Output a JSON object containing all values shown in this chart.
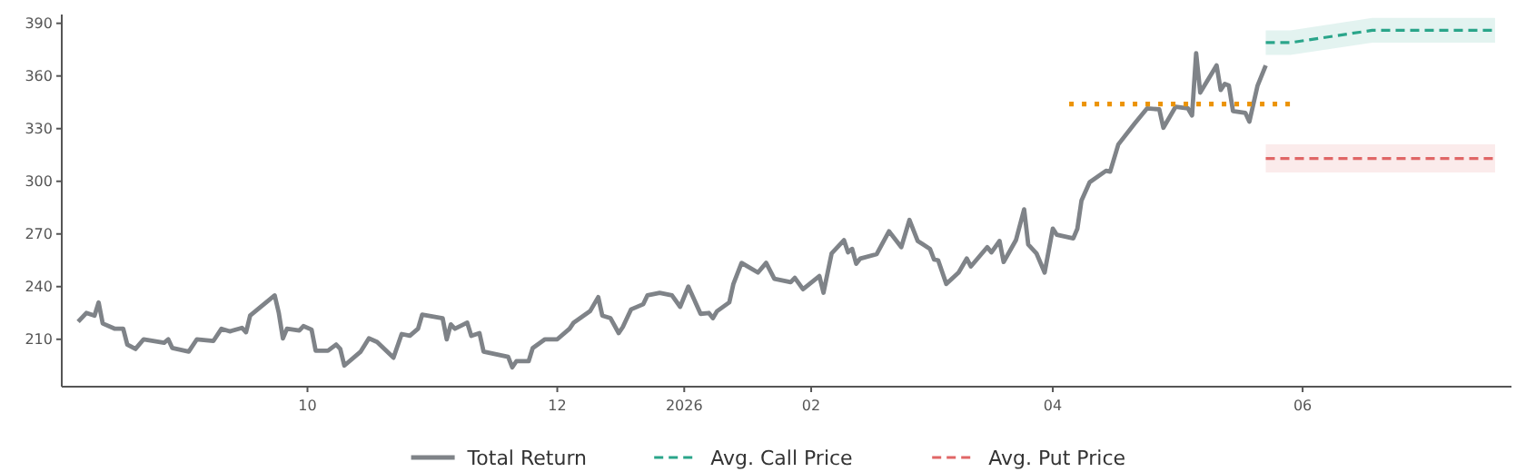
{
  "chart_data": {
    "type": "line",
    "xlim": [
      "2025-08-02",
      "2026-07-22"
    ],
    "ylim": [
      183,
      395
    ],
    "yticks": [
      210,
      240,
      270,
      300,
      330,
      360,
      390
    ],
    "xticks": [
      {
        "value": "2025-10-01",
        "label": "10"
      },
      {
        "value": "2025-12-01",
        "label": "12"
      },
      {
        "value": "2026-01-01",
        "label": "2026"
      },
      {
        "value": "2026-02-01",
        "label": "02"
      },
      {
        "value": "2026-04-01",
        "label": "04"
      },
      {
        "value": "2026-06-01",
        "label": "06"
      }
    ],
    "legend": "bottom",
    "grid": false,
    "series": [
      {
        "name": "Total Return",
        "color": "#7f8388",
        "line_style": "solid",
        "x": [
          "2025-08-06",
          "2025-08-08",
          "2025-08-10",
          "2025-08-11",
          "2025-08-12",
          "2025-08-15",
          "2025-08-17",
          "2025-08-18",
          "2025-08-20",
          "2025-08-22",
          "2025-08-27",
          "2025-08-28",
          "2025-08-29",
          "2025-09-02",
          "2025-09-04",
          "2025-09-08",
          "2025-09-10",
          "2025-09-12",
          "2025-09-15",
          "2025-09-16",
          "2025-09-17",
          "2025-09-23",
          "2025-09-24",
          "2025-09-25",
          "2025-09-26",
          "2025-09-29",
          "2025-09-30",
          "2025-10-02",
          "2025-10-03",
          "2025-10-06",
          "2025-10-08",
          "2025-10-09",
          "2025-10-10",
          "2025-10-14",
          "2025-10-16",
          "2025-10-18",
          "2025-10-22",
          "2025-10-24",
          "2025-10-26",
          "2025-10-28",
          "2025-10-29",
          "2025-11-03",
          "2025-11-04",
          "2025-11-05",
          "2025-11-06",
          "2025-11-09",
          "2025-11-10",
          "2025-11-12",
          "2025-11-13",
          "2025-11-19",
          "2025-11-20",
          "2025-11-21",
          "2025-11-24",
          "2025-11-25",
          "2025-11-28",
          "2025-12-01",
          "2025-12-04",
          "2025-12-05",
          "2025-12-09",
          "2025-12-11",
          "2025-12-12",
          "2025-12-14",
          "2025-12-16",
          "2025-12-17",
          "2025-12-19",
          "2025-12-22",
          "2025-12-23",
          "2025-12-26",
          "2025-12-29",
          "2025-12-31",
          "2026-01-02",
          "2026-01-05",
          "2026-01-07",
          "2026-01-08",
          "2026-01-09",
          "2026-01-12",
          "2026-01-13",
          "2026-01-15",
          "2026-01-19",
          "2026-01-21",
          "2026-01-23",
          "2026-01-27",
          "2026-01-28",
          "2026-01-30",
          "2026-02-03",
          "2026-02-04",
          "2026-02-06",
          "2026-02-09",
          "2026-02-10",
          "2026-02-11",
          "2026-02-12",
          "2026-02-13",
          "2026-02-17",
          "2026-02-20",
          "2026-02-23",
          "2026-02-25",
          "2026-02-27",
          "2026-03-02",
          "2026-03-03",
          "2026-03-04",
          "2026-03-06",
          "2026-03-09",
          "2026-03-11",
          "2026-03-12",
          "2026-03-16",
          "2026-03-17",
          "2026-03-19",
          "2026-03-20",
          "2026-03-23",
          "2026-03-25",
          "2026-03-26",
          "2026-03-28",
          "2026-03-30",
          "2026-04-01",
          "2026-04-02",
          "2026-04-06",
          "2026-04-07",
          "2026-04-08",
          "2026-04-10",
          "2026-04-14",
          "2026-04-15",
          "2026-04-17",
          "2026-04-21",
          "2026-04-24",
          "2026-04-27",
          "2026-04-28",
          "2026-05-01",
          "2026-05-04",
          "2026-05-05",
          "2026-05-06",
          "2026-05-07",
          "2026-05-11",
          "2026-05-12",
          "2026-05-13",
          "2026-05-14",
          "2026-05-15",
          "2026-05-18",
          "2026-05-19",
          "2026-05-21",
          "2026-05-23"
        ],
        "values": [
          220,
          225,
          223.5,
          231,
          219,
          216,
          216,
          207,
          204.5,
          210,
          208,
          210,
          205,
          203,
          210,
          209,
          216,
          214.5,
          216.5,
          214,
          223.5,
          235,
          225,
          210.5,
          216,
          215,
          217.5,
          215.5,
          203.5,
          203.5,
          207,
          204.5,
          195,
          203,
          210.5,
          208.5,
          199.5,
          213,
          212,
          216,
          224,
          222,
          210,
          218.5,
          216,
          219.5,
          212,
          213.5,
          203,
          200,
          194,
          197.5,
          197.5,
          205,
          210,
          210,
          216,
          219.5,
          226,
          234,
          223.5,
          222,
          213.5,
          217,
          227,
          230,
          235,
          236.5,
          235,
          228.5,
          240,
          224.5,
          225,
          222,
          226,
          231,
          241.5,
          253.5,
          248,
          253.5,
          244.5,
          242.5,
          245,
          238.5,
          246,
          236.5,
          259,
          266.5,
          259.5,
          261.5,
          253,
          256,
          258.5,
          271.5,
          262.5,
          278,
          266,
          261.5,
          255.5,
          255,
          241.5,
          248,
          256,
          251.5,
          262.5,
          259.5,
          266,
          254,
          266.5,
          284,
          264,
          259,
          248,
          273,
          269.5,
          267.5,
          273,
          289,
          299.5,
          306,
          305.5,
          321,
          333,
          341.5,
          341,
          330.5,
          342.5,
          341.5,
          337.5,
          373,
          350.5,
          366,
          352,
          355.5,
          354.5,
          340,
          339,
          334,
          354.5,
          366
        ]
      },
      {
        "name": "Avg. Call Price",
        "color": "#2aa58a",
        "line_style": "dashed",
        "x": [
          "2026-05-23",
          "2026-05-29",
          "2026-06-18",
          "2026-07-18"
        ],
        "values": [
          379,
          379,
          386,
          386
        ],
        "lower": [
          372,
          372,
          379,
          379
        ],
        "upper": [
          386,
          386,
          393,
          393
        ]
      },
      {
        "name": "Avg. Put Price",
        "color": "#e06666",
        "line_style": "dashed",
        "x": [
          "2026-05-23",
          "2026-07-18"
        ],
        "values": [
          313,
          313
        ],
        "lower": [
          305,
          305
        ],
        "upper": [
          321,
          321
        ]
      },
      {
        "color": "#ec9306",
        "line_style": "dotted",
        "x": [
          "2026-04-05",
          "2026-05-30"
        ],
        "values": [
          344,
          344
        ]
      }
    ]
  }
}
